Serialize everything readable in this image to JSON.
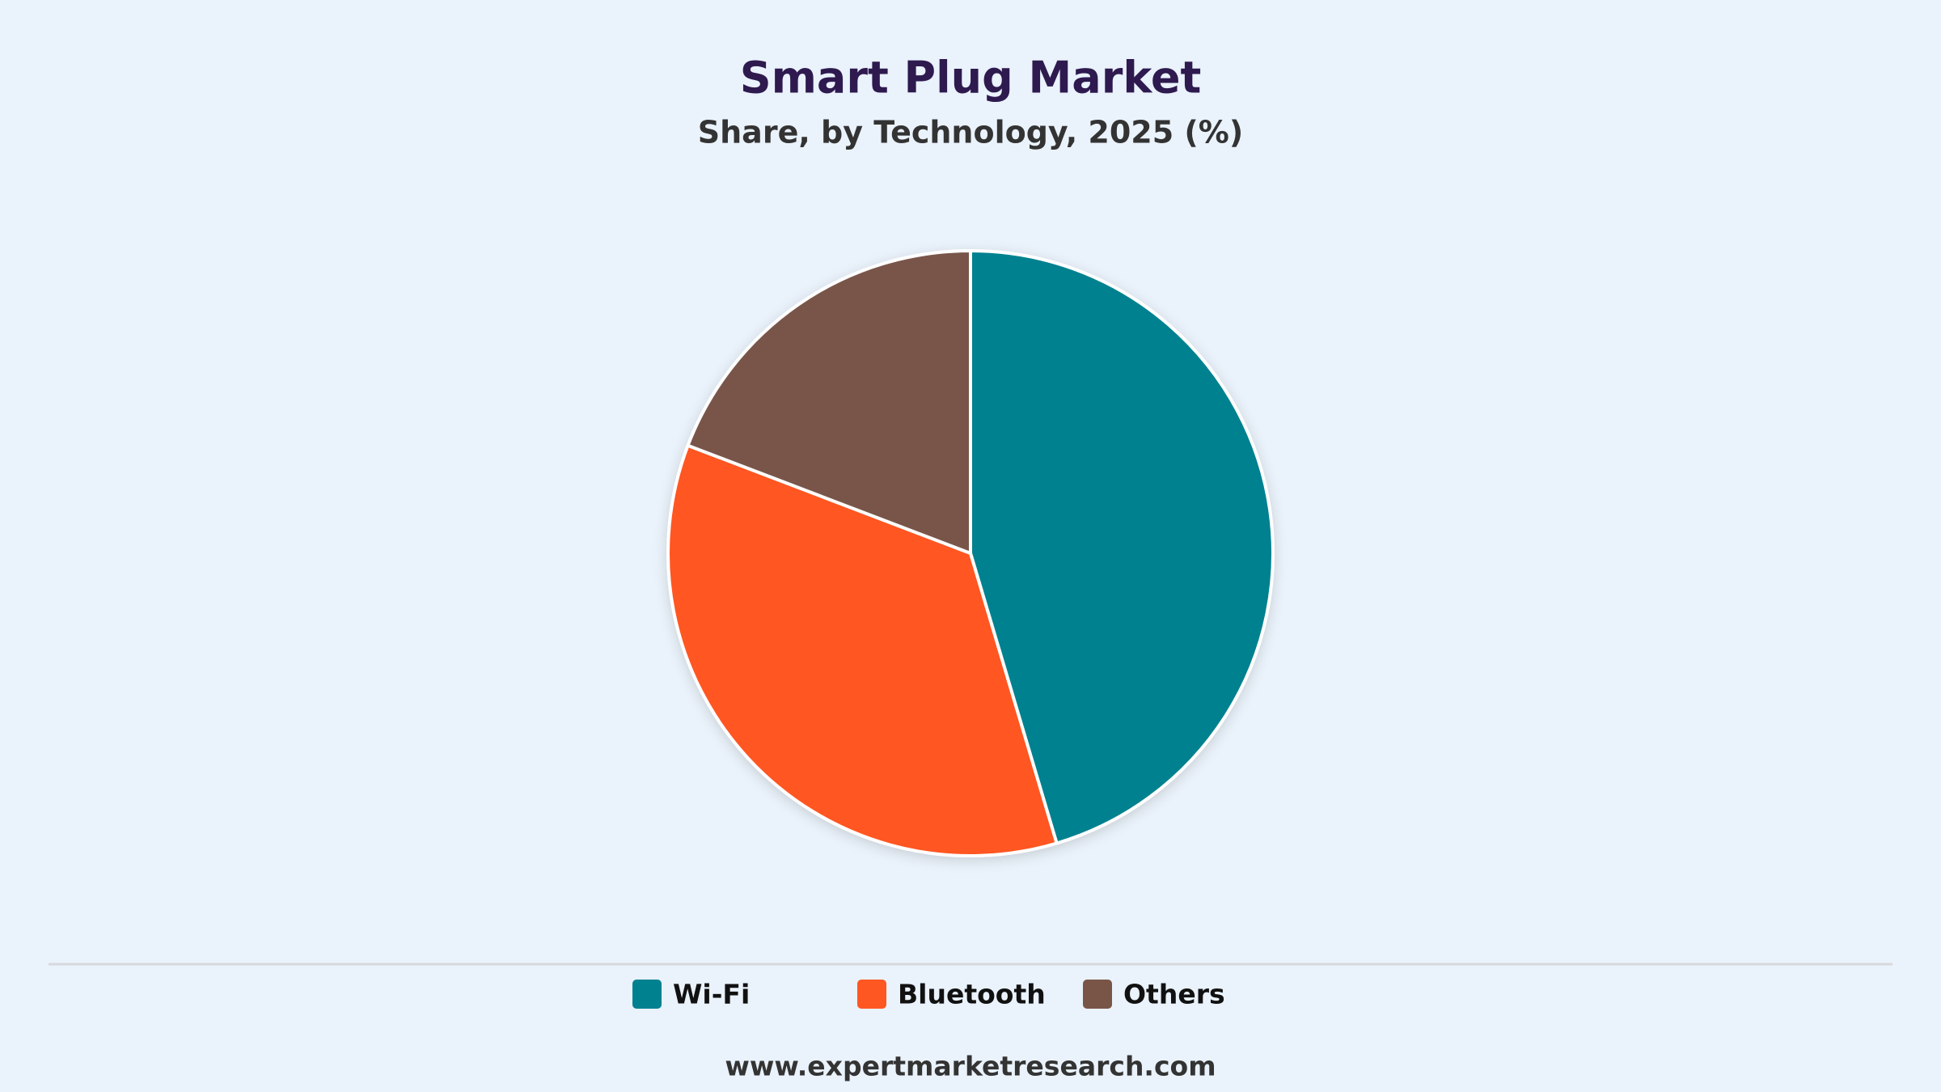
{
  "chart_data": {
    "type": "pie",
    "title": "Smart Plug Market",
    "subtitle": "Share, by Technology, 2025 (%)",
    "categories": [
      "Wi-Fi",
      "Bluetooth",
      "Others"
    ],
    "values": [
      45.4,
      35.4,
      19.2
    ],
    "colors": [
      "#00818f",
      "#ff5722",
      "#795548"
    ],
    "legend": "bottom"
  },
  "footer": "www.expertmarketresearch.com"
}
